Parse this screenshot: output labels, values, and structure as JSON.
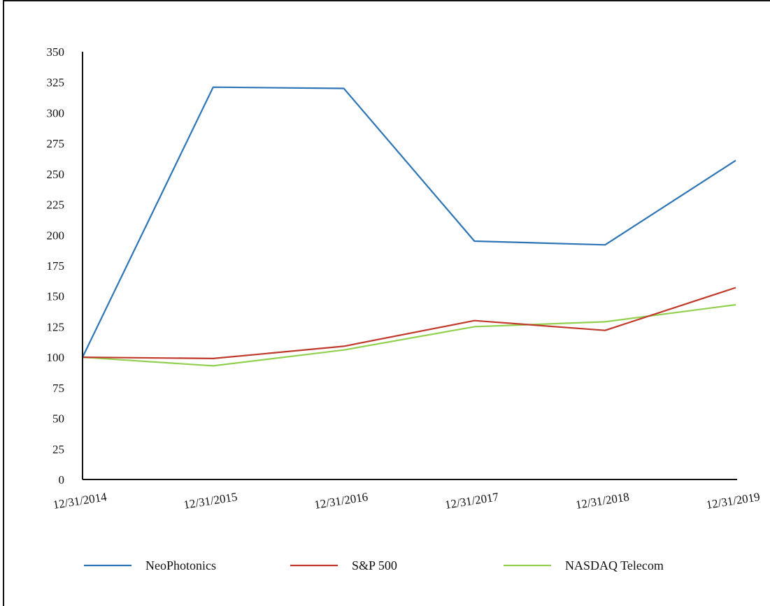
{
  "chart_data": {
    "type": "line",
    "title": "",
    "xlabel": "",
    "ylabel": "",
    "ylim": [
      0,
      350
    ],
    "yticks": [
      0,
      25,
      50,
      75,
      100,
      125,
      150,
      175,
      200,
      225,
      250,
      275,
      300,
      325,
      350
    ],
    "categories": [
      "12/31/2014",
      "12/31/2015",
      "12/31/2016",
      "12/31/2017",
      "12/31/2018",
      "12/31/2019"
    ],
    "grid": false,
    "legend_position": "bottom",
    "series": [
      {
        "name": "NeoPhotonics",
        "color": "#2e75b6",
        "values": [
          100,
          321,
          320,
          195,
          192,
          261
        ]
      },
      {
        "name": "S&P 500",
        "color": "#c0392b",
        "values": [
          100,
          99,
          109,
          130,
          122,
          157
        ]
      },
      {
        "name": "NASDAQ Telecom",
        "color": "#92d050",
        "values": [
          100,
          93,
          106,
          125,
          129,
          143
        ]
      }
    ]
  }
}
